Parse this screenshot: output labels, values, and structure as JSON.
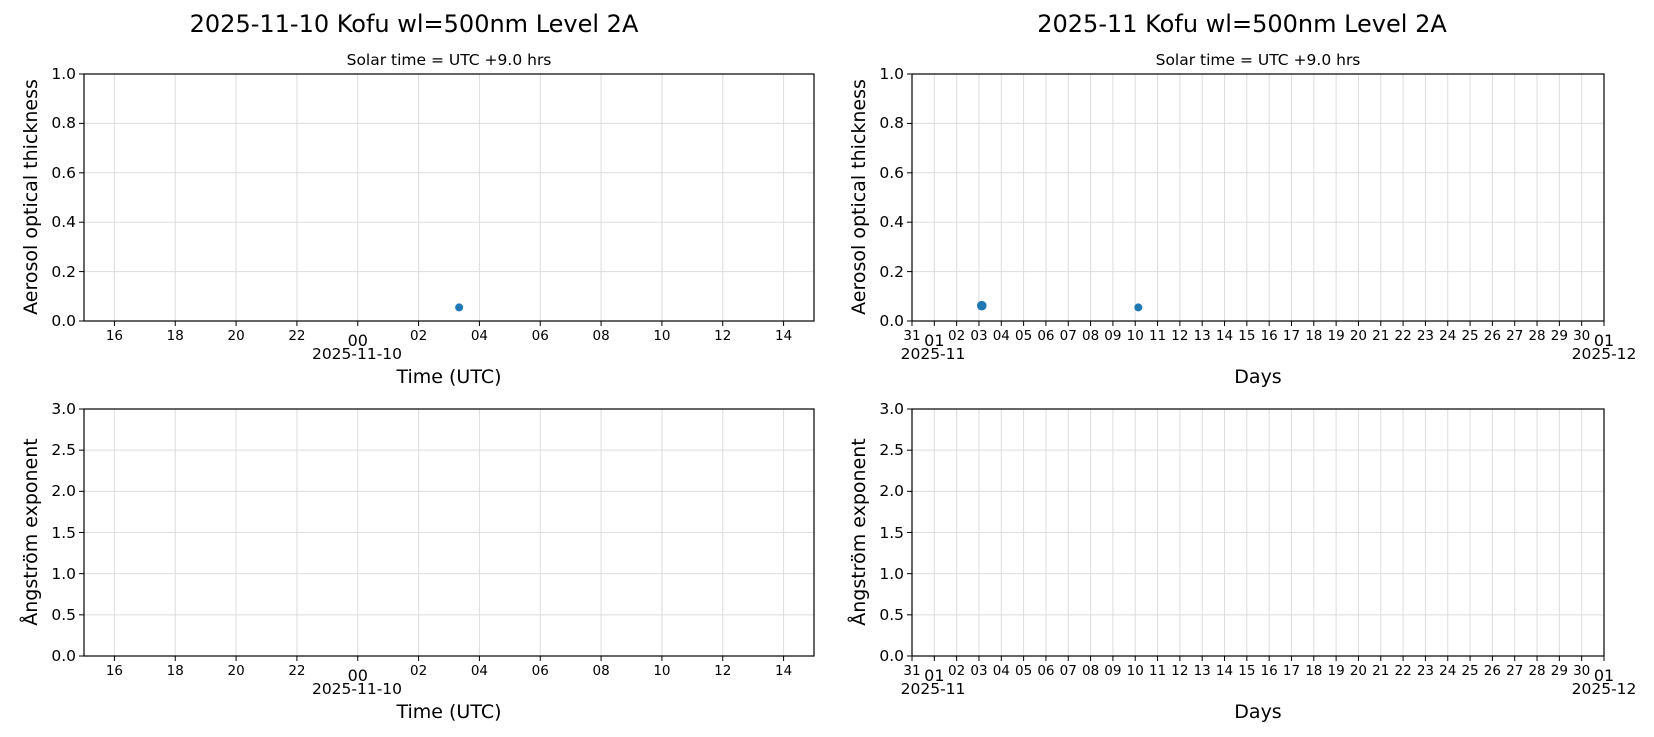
{
  "figure": {
    "left_title": "2025-11-10  Kofu  wl=500nm  Level 2A",
    "right_title": "2025-11  Kofu  wl=500nm  Level 2A",
    "left_subtitle": "Solar time = UTC +9.0 hrs",
    "right_subtitle": "Solar time = UTC +9.0 hrs",
    "colors": {
      "marker": "#1f77b4",
      "grid": "#dddddd",
      "axes": "#000000"
    }
  },
  "labels": {
    "aot_ylabel": "Aerosol optical thickness",
    "angstrom_ylabel": "Ångström exponent",
    "time_xlabel": "Time (UTC)",
    "days_xlabel": "Days",
    "daily_date": "2025-11-10",
    "month_start": "2025-11",
    "month_end": "2025-12"
  },
  "chart_data": [
    {
      "type": "scatter",
      "title": "2025-11-10  Kofu  wl=500nm  Level 2A",
      "subtitle": "Solar time = UTC +9.0 hrs",
      "xlabel": "Time (UTC)",
      "ylabel": "Aerosol optical thickness",
      "x_ticks": [
        "16",
        "18",
        "20",
        "22",
        "00",
        "02",
        "04",
        "06",
        "08",
        "10",
        "12",
        "14"
      ],
      "x_sublabel": "2025-11-10",
      "xlim": [
        "2025-11-09 15:00",
        "2025-11-10 15:00"
      ],
      "ylim": [
        0.0,
        1.0
      ],
      "y_ticks": [
        "0.0",
        "0.2",
        "0.4",
        "0.6",
        "0.8",
        "1.0"
      ],
      "grid": true,
      "points": [
        {
          "x": "2025-11-10 03:20",
          "y": 0.055
        }
      ]
    },
    {
      "type": "scatter",
      "title": "2025-11  Kofu  wl=500nm  Level 2A",
      "subtitle": "Solar time = UTC +9.0 hrs",
      "xlabel": "Days",
      "ylabel": "Aerosol optical thickness",
      "x_ticks": [
        "31",
        "01",
        "02",
        "03",
        "04",
        "05",
        "06",
        "07",
        "08",
        "09",
        "10",
        "11",
        "12",
        "13",
        "14",
        "15",
        "16",
        "17",
        "18",
        "19",
        "20",
        "21",
        "22",
        "23",
        "24",
        "25",
        "26",
        "27",
        "28",
        "29",
        "30",
        "01"
      ],
      "x_sublabels": [
        "2025-11",
        "2025-12"
      ],
      "xlim": [
        "2025-10-31",
        "2025-12-01"
      ],
      "ylim": [
        0.0,
        1.0
      ],
      "y_ticks": [
        "0.0",
        "0.2",
        "0.4",
        "0.6",
        "0.8",
        "1.0"
      ],
      "grid": true,
      "points": [
        {
          "x": "2025-11-03 03:00",
          "y": 0.062
        },
        {
          "x": "2025-11-10 03:20",
          "y": 0.055
        }
      ]
    },
    {
      "type": "scatter",
      "xlabel": "Time (UTC)",
      "ylabel": "Ångström exponent",
      "x_ticks": [
        "16",
        "18",
        "20",
        "22",
        "00",
        "02",
        "04",
        "06",
        "08",
        "10",
        "12",
        "14"
      ],
      "x_sublabel": "2025-11-10",
      "ylim": [
        0.0,
        3.0
      ],
      "y_ticks": [
        "0.0",
        "0.5",
        "1.0",
        "1.5",
        "2.0",
        "2.5",
        "3.0"
      ],
      "grid": true,
      "points": []
    },
    {
      "type": "scatter",
      "xlabel": "Days",
      "ylabel": "Ångström exponent",
      "x_ticks": [
        "31",
        "01",
        "02",
        "03",
        "04",
        "05",
        "06",
        "07",
        "08",
        "09",
        "10",
        "11",
        "12",
        "13",
        "14",
        "15",
        "16",
        "17",
        "18",
        "19",
        "20",
        "21",
        "22",
        "23",
        "24",
        "25",
        "26",
        "27",
        "28",
        "29",
        "30",
        "01"
      ],
      "x_sublabels": [
        "2025-11",
        "2025-12"
      ],
      "ylim": [
        0.0,
        3.0
      ],
      "y_ticks": [
        "0.0",
        "0.5",
        "1.0",
        "1.5",
        "2.0",
        "2.5",
        "3.0"
      ],
      "grid": true,
      "points": []
    }
  ]
}
